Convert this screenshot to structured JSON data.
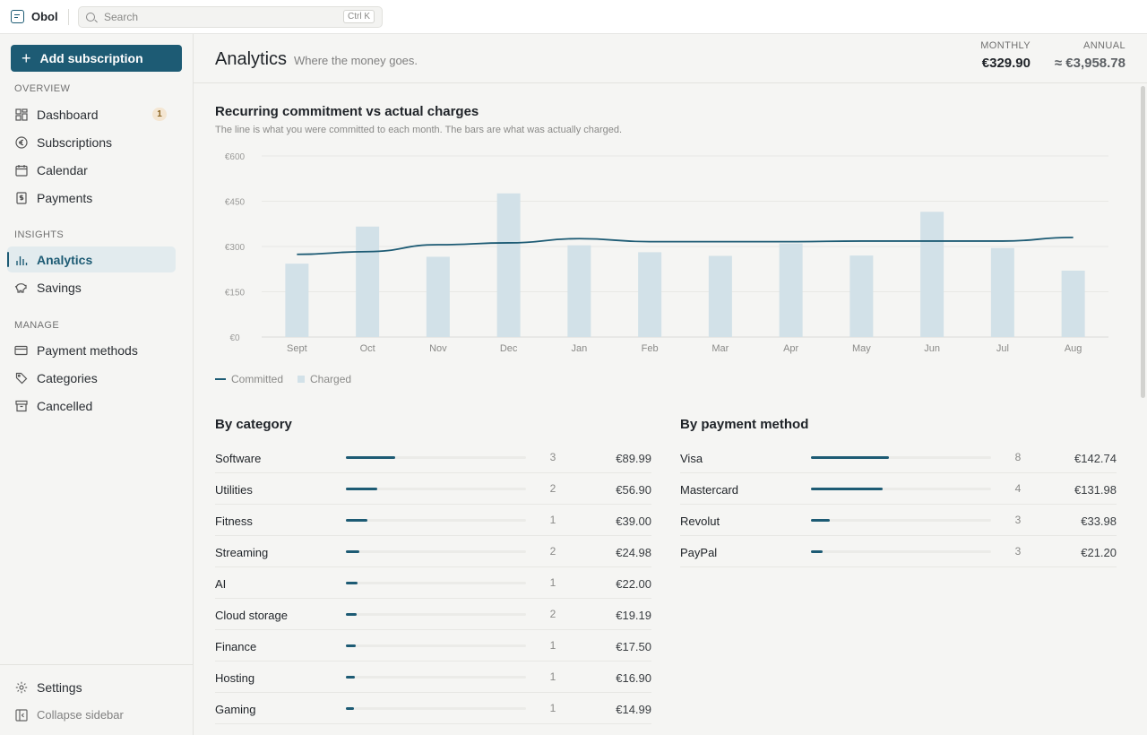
{
  "app": {
    "name": "Obol"
  },
  "search": {
    "placeholder": "Search",
    "shortcut": "Ctrl K"
  },
  "sidebar": {
    "add_button": "Add subscription",
    "sections": [
      {
        "label": "OVERVIEW",
        "items": [
          {
            "label": "Dashboard",
            "icon": "dashboard-icon",
            "badge": "1"
          },
          {
            "label": "Subscriptions",
            "icon": "euro-icon"
          },
          {
            "label": "Calendar",
            "icon": "calendar-icon"
          },
          {
            "label": "Payments",
            "icon": "receipt-icon"
          }
        ]
      },
      {
        "label": "INSIGHTS",
        "items": [
          {
            "label": "Analytics",
            "icon": "bar-chart-icon",
            "active": true
          },
          {
            "label": "Savings",
            "icon": "piggy-bank-icon"
          }
        ]
      },
      {
        "label": "MANAGE",
        "items": [
          {
            "label": "Payment methods",
            "icon": "credit-card-icon"
          },
          {
            "label": "Categories",
            "icon": "tag-icon"
          },
          {
            "label": "Cancelled",
            "icon": "archive-icon"
          }
        ]
      }
    ],
    "footer": {
      "settings": "Settings",
      "collapse": "Collapse sidebar"
    }
  },
  "header": {
    "title": "Analytics",
    "subtitle": "Where the money goes.",
    "monthly_label": "MONTHLY",
    "monthly_value": "€329.90",
    "annual_label": "ANNUAL",
    "annual_value": "≈ €3,958.78"
  },
  "chart": {
    "title": "Recurring commitment vs actual charges",
    "subtitle": "The line is what you were committed to each month. The bars are what was actually charged.",
    "legend_committed": "Committed",
    "legend_charged": "Charged"
  },
  "chart_data": {
    "type": "bar",
    "categories": [
      "Sept",
      "Oct",
      "Nov",
      "Dec",
      "Jan",
      "Feb",
      "Mar",
      "Apr",
      "May",
      "Jun",
      "Jul",
      "Aug"
    ],
    "series": [
      {
        "name": "Charged",
        "type": "bar",
        "values": [
          243,
          366,
          266,
          476,
          304,
          281,
          269,
          310,
          270,
          415,
          295,
          220
        ]
      },
      {
        "name": "Committed",
        "type": "line",
        "values": [
          274,
          283,
          306,
          312,
          326,
          316,
          316,
          316,
          318,
          318,
          318,
          330
        ]
      }
    ],
    "yticks": [
      "€0",
      "€150",
      "€300",
      "€450",
      "€600"
    ],
    "ylim": [
      0,
      600
    ],
    "grid": true,
    "legend_position": "bottom-left",
    "colors": {
      "bar": "#d2e1e8",
      "line": "#1d5b74"
    }
  },
  "by_category": {
    "title": "By category",
    "rows": [
      {
        "name": "Software",
        "count": "3",
        "amount": "€89.99",
        "share": 0.273
      },
      {
        "name": "Utilities",
        "count": "2",
        "amount": "€56.90",
        "share": 0.172
      },
      {
        "name": "Fitness",
        "count": "1",
        "amount": "€39.00",
        "share": 0.118
      },
      {
        "name": "Streaming",
        "count": "2",
        "amount": "€24.98",
        "share": 0.076
      },
      {
        "name": "AI",
        "count": "1",
        "amount": "€22.00",
        "share": 0.067
      },
      {
        "name": "Cloud storage",
        "count": "2",
        "amount": "€19.19",
        "share": 0.058
      },
      {
        "name": "Finance",
        "count": "1",
        "amount": "€17.50",
        "share": 0.053
      },
      {
        "name": "Hosting",
        "count": "1",
        "amount": "€16.90",
        "share": 0.051
      },
      {
        "name": "Gaming",
        "count": "1",
        "amount": "€14.99",
        "share": 0.045
      }
    ]
  },
  "by_payment_method": {
    "title": "By payment method",
    "rows": [
      {
        "name": "Visa",
        "count": "8",
        "amount": "€142.74",
        "share": 0.433
      },
      {
        "name": "Mastercard",
        "count": "4",
        "amount": "€131.98",
        "share": 0.4
      },
      {
        "name": "Revolut",
        "count": "3",
        "amount": "€33.98",
        "share": 0.103
      },
      {
        "name": "PayPal",
        "count": "3",
        "amount": "€21.20",
        "share": 0.064
      }
    ]
  }
}
